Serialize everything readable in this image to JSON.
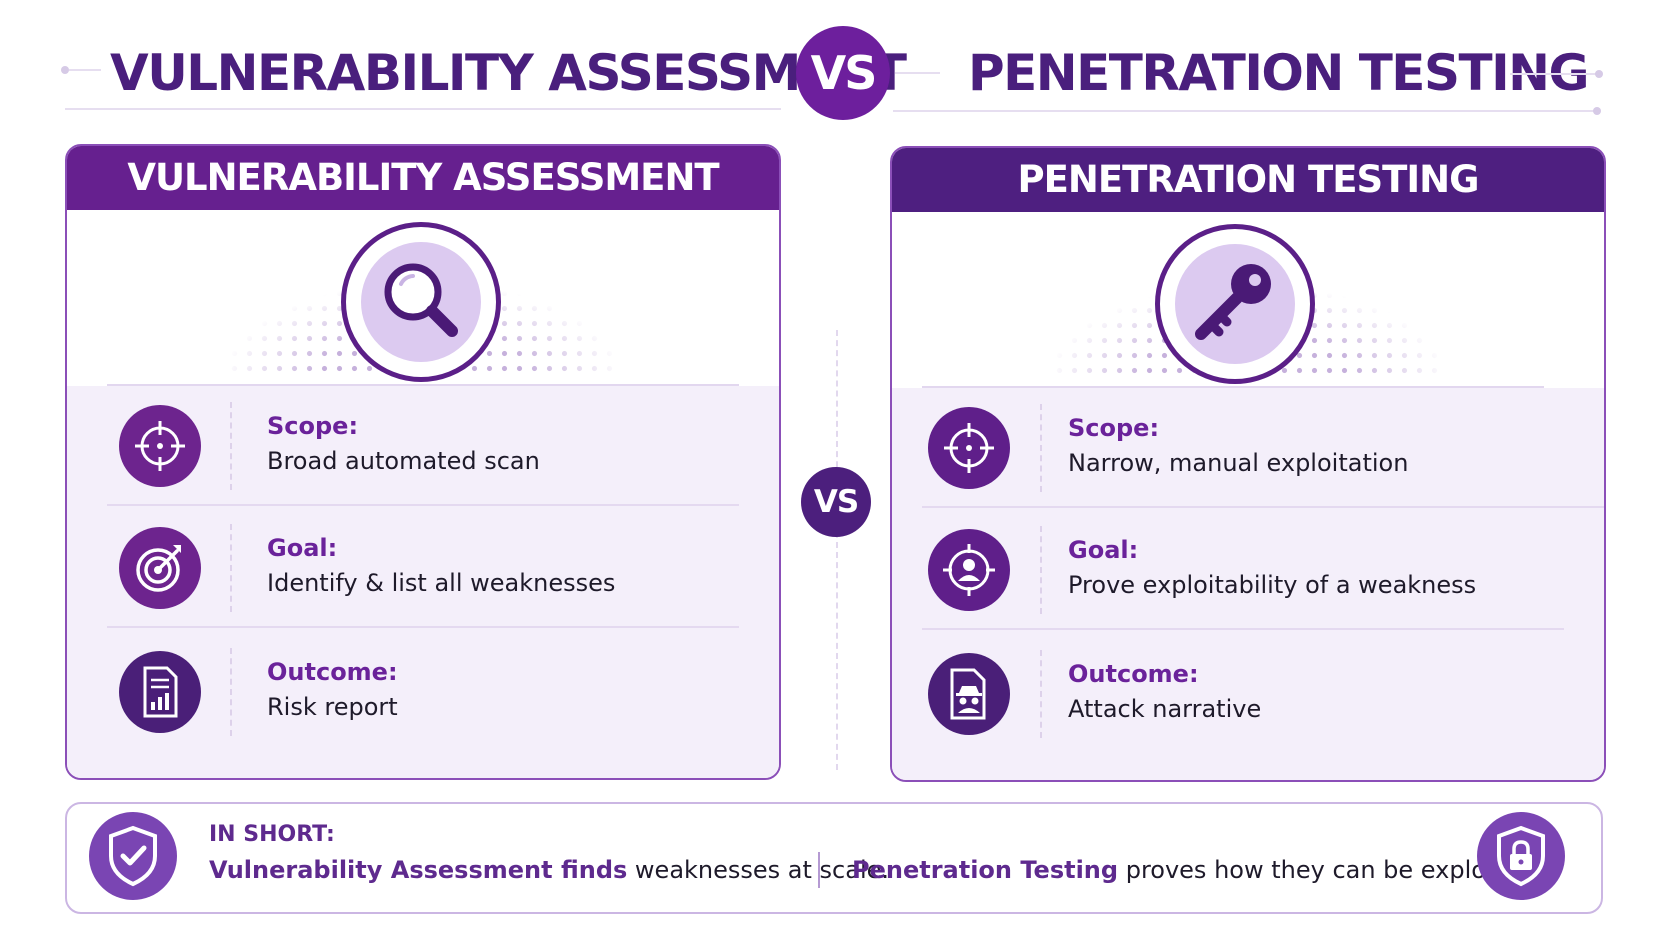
{
  "header": {
    "left_title": "VULNERABILITY ASSESSMENT",
    "vs": "VS",
    "right_title": "PENETRATION TESTING"
  },
  "center_vs": "VS",
  "panels": [
    {
      "title": "VULNERABILITY ASSESSMENT",
      "hero_icon": "magnifier-icon",
      "rows": [
        {
          "icon": "crosshair-icon",
          "label": "Scope:",
          "text": "Broad automated scan"
        },
        {
          "icon": "target-dart-icon",
          "label": "Goal:",
          "text": "Identify & list all weaknesses"
        },
        {
          "icon": "report-chart-icon",
          "label": "Outcome:",
          "text": "Risk report"
        }
      ]
    },
    {
      "title": "PENETRATION TESTING",
      "hero_icon": "key-icon",
      "rows": [
        {
          "icon": "crosshair-icon",
          "label": "Scope:",
          "text": "Narrow, manual exploitation"
        },
        {
          "icon": "user-target-icon",
          "label": "Goal:",
          "text": "Prove exploitability of a weakness"
        },
        {
          "icon": "spy-document-icon",
          "label": "Outcome:",
          "text": "Attack narrative"
        }
      ]
    }
  ],
  "summary": {
    "label": "IN SHORT:",
    "left_bold": "Vulnerability Assessment finds",
    "left_rest": " weaknesses at scale.",
    "right_bold": "Penetration Testing",
    "right_rest": " proves how they can be exploited.",
    "left_icon": "shield-check-icon",
    "right_icon": "shield-lock-icon"
  },
  "colors": {
    "primary_purple": "#66208f",
    "title_purple": "#4a1f7d",
    "body_tint": "#f4effa",
    "icon_light": "#dccaf0"
  }
}
